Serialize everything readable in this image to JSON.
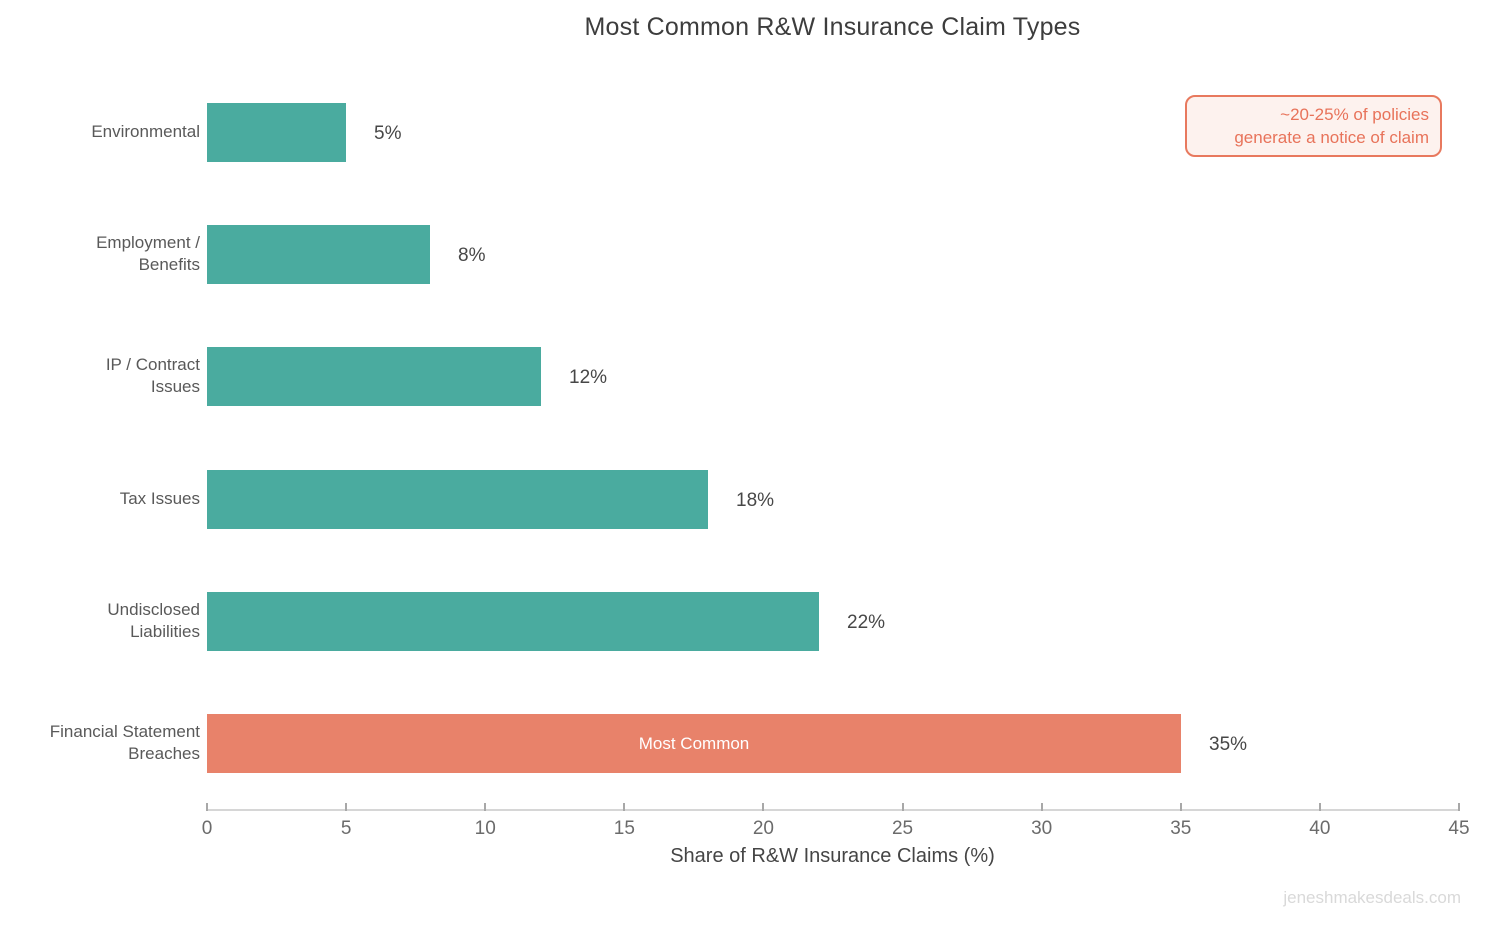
{
  "title": "Most Common R&W Insurance Claim Types",
  "annotation": {
    "line1": "~20-25% of policies",
    "line2": "generate a notice of claim"
  },
  "watermark": "jeneshmakesdeals.com",
  "chart_data": {
    "type": "bar",
    "orientation": "horizontal",
    "title": "Most Common R&W Insurance Claim Types",
    "categories": [
      "Environmental",
      "Employment / Benefits",
      "IP / Contract Issues",
      "Tax Issues",
      "Undisclosed Liabilities",
      "Financial Statement Breaches"
    ],
    "category_label_lines": [
      [
        "Environmental"
      ],
      [
        "Employment /",
        "Benefits"
      ],
      [
        "IP / Contract",
        "Issues"
      ],
      [
        "Tax Issues"
      ],
      [
        "Undisclosed",
        "Liabilities"
      ],
      [
        "Financial Statement",
        "Breaches"
      ]
    ],
    "values": [
      5,
      8,
      12,
      18,
      22,
      35
    ],
    "value_labels": [
      "5%",
      "8%",
      "12%",
      "18%",
      "22%",
      "35%"
    ],
    "highlighted_index": 5,
    "highlight_inner_label": "Most Common",
    "xlabel": "Share of R&W Insurance Claims (%)",
    "ylabel": "",
    "xlim": [
      0,
      45
    ],
    "xticks": [
      0,
      5,
      10,
      15,
      20,
      25,
      30,
      35,
      40,
      45
    ],
    "grid": false,
    "legend": false,
    "colors": {
      "bar_teal": "#4aab9f",
      "bar_coral": "#e8826a",
      "annotation_accent": "#e8735a"
    }
  }
}
